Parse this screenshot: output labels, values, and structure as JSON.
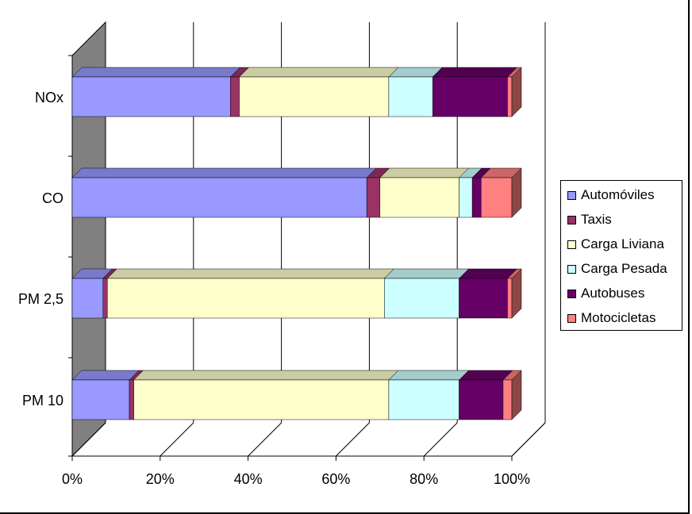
{
  "chart_data": {
    "type": "bar",
    "orientation": "horizontal",
    "stacked": "percent",
    "three_d": true,
    "categories": [
      "NOx",
      "CO",
      "PM 2,5",
      "PM 10"
    ],
    "x_tick_labels": [
      "0%",
      "20%",
      "40%",
      "60%",
      "80%",
      "100%"
    ],
    "xlim": [
      0,
      100
    ],
    "grid": true,
    "legend_position": "right",
    "series": [
      {
        "name": "Automóviles",
        "color": "#9999FF",
        "values": [
          36,
          67,
          7,
          13
        ]
      },
      {
        "name": "Taxis",
        "color": "#993366",
        "values": [
          2,
          3,
          1,
          1
        ]
      },
      {
        "name": "Carga Liviana",
        "color": "#FFFFCC",
        "values": [
          34,
          18,
          63,
          58
        ]
      },
      {
        "name": "Carga Pesada",
        "color": "#CCFFFF",
        "values": [
          10,
          3,
          17,
          16
        ]
      },
      {
        "name": "Autobuses",
        "color": "#660066",
        "values": [
          17,
          2,
          11,
          10
        ]
      },
      {
        "name": "Motocicletas",
        "color": "#FF8080",
        "values": [
          1,
          7,
          1,
          2
        ]
      }
    ]
  }
}
